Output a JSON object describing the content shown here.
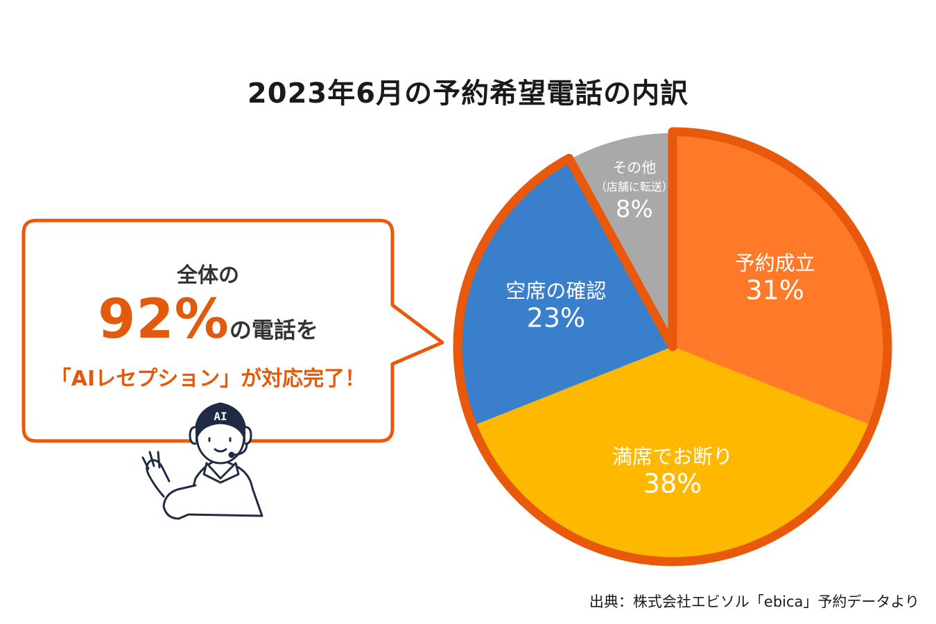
{
  "title": "2023年6月の予約希望電話の内訳",
  "source": "出典：株式会社エビソル「ebica」予約データより",
  "callout": {
    "line1": "全体の",
    "highlight": "92%",
    "line2_tail": "の電話を",
    "line3": "「AIレセプション」が対応完了！"
  },
  "avatar": {
    "badge": "AI"
  },
  "colors": {
    "highlight_border": "#e8590c",
    "text_accent": "#e35a0c"
  },
  "chart_data": {
    "type": "pie",
    "title": "2023年6月の予約希望電話の内訳",
    "slices": [
      {
        "label": "予約成立",
        "sublabel": "",
        "value": 31,
        "value_label": "31%",
        "color": "#ff7a28",
        "highlighted": true
      },
      {
        "label": "満席でお断り",
        "sublabel": "",
        "value": 38,
        "value_label": "38%",
        "color": "#ffb800",
        "highlighted": true
      },
      {
        "label": "空席の確認",
        "sublabel": "",
        "value": 23,
        "value_label": "23%",
        "color": "#3a7fcb",
        "highlighted": true
      },
      {
        "label": "その他",
        "sublabel": "（店舗に転送）",
        "value": 8,
        "value_label": "8%",
        "color": "#a9a9a9",
        "highlighted": false
      }
    ],
    "start_angle_deg": 0,
    "direction": "clockwise"
  }
}
